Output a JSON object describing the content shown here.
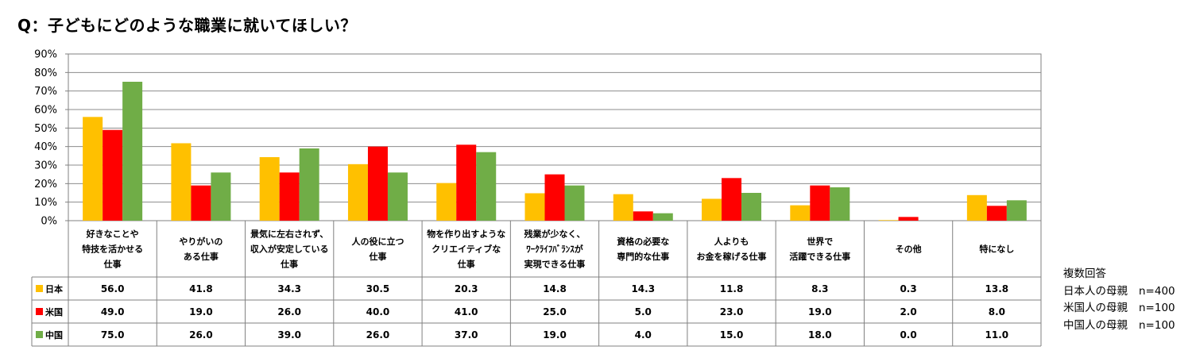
{
  "title": "Q：子どもにどのような職業に就いてほしい？",
  "notes": {
    "multiple": "複数回答",
    "rows": [
      {
        "label": "日本人の母親",
        "n": "n=400"
      },
      {
        "label": "米国人の母親",
        "n": "n=100"
      },
      {
        "label": "中国人の母親",
        "n": "n=100"
      }
    ]
  },
  "chart_data": {
    "type": "bar",
    "title": "Q：子どもにどのような職業に就いてほしい？",
    "ylim": [
      0,
      90
    ],
    "y_ticks": [
      "0%",
      "10%",
      "20%",
      "30%",
      "40%",
      "50%",
      "60%",
      "70%",
      "80%",
      "90%"
    ],
    "grid": true,
    "legend": "table-left",
    "categories": [
      [
        "好きなことや",
        "特技を活かせる",
        "仕事"
      ],
      [
        "やりがいの",
        "ある仕事"
      ],
      [
        "景気に左右されず、",
        "収入が安定している",
        "仕事"
      ],
      [
        "人の役に立つ",
        "仕事"
      ],
      [
        "物を作り出すような",
        "クリエイティブな",
        "仕事"
      ],
      [
        "残業が少なく、",
        "ﾜｰｸﾗｲﾌﾊﾞﾗﾝｽが",
        "実現できる仕事"
      ],
      [
        "資格の必要な",
        "専門的な仕事"
      ],
      [
        "人よりも",
        "お金を稼げる仕事"
      ],
      [
        "世界で",
        "活躍できる仕事"
      ],
      [
        "その他"
      ],
      [
        "特になし"
      ]
    ],
    "series": [
      {
        "name": "日本",
        "color": "#FFC000",
        "values": [
          56.0,
          41.8,
          34.3,
          30.5,
          20.3,
          14.8,
          14.3,
          11.8,
          8.3,
          0.3,
          13.8
        ],
        "labels": [
          "56.0",
          "41.8",
          "34.3",
          "30.5",
          "20.3",
          "14.8",
          "14.3",
          "11.8",
          "8.3",
          "0.3",
          "13.8"
        ]
      },
      {
        "name": "米国",
        "color": "#FF0000",
        "values": [
          49.0,
          19.0,
          26.0,
          40.0,
          41.0,
          25.0,
          5.0,
          23.0,
          19.0,
          2.0,
          8.0
        ],
        "labels": [
          "49.0",
          "19.0",
          "26.0",
          "40.0",
          "41.0",
          "25.0",
          "5.0",
          "23.0",
          "19.0",
          "2.0",
          "8.0"
        ]
      },
      {
        "name": "中国",
        "color": "#70AD47",
        "values": [
          75.0,
          26.0,
          39.0,
          26.0,
          37.0,
          19.0,
          4.0,
          15.0,
          18.0,
          0.0,
          11.0
        ],
        "labels": [
          "75.0",
          "26.0",
          "39.0",
          "26.0",
          "37.0",
          "19.0",
          "4.0",
          "15.0",
          "18.0",
          "0.0",
          "11.0"
        ]
      }
    ]
  }
}
